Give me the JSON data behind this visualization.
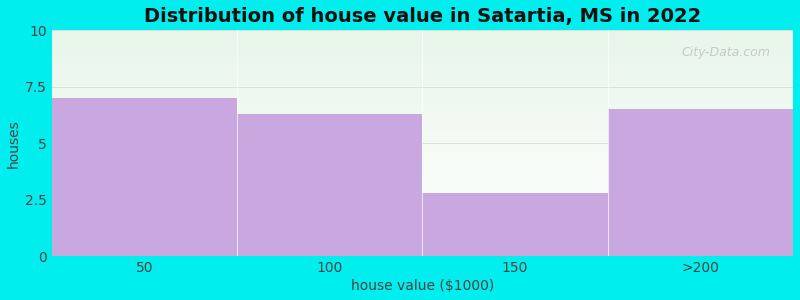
{
  "title": "Distribution of house value in Satartia, MS in 2022",
  "xlabel": "house value ($1000)",
  "ylabel": "houses",
  "categories": [
    "50",
    "100",
    "150",
    ">200"
  ],
  "values": [
    7,
    6.3,
    2.8,
    6.5
  ],
  "bar_color": "#c9a8e0",
  "bar_edge_color": "#c9a8e0",
  "background_color": "#00eeee",
  "plot_bg_color_top": "#e8f5e9",
  "plot_bg_color_bottom": "#ffffff",
  "ylim": [
    0,
    10
  ],
  "yticks": [
    0,
    2.5,
    5,
    7.5,
    10
  ],
  "title_fontsize": 14,
  "axis_label_fontsize": 10,
  "tick_fontsize": 10,
  "watermark_text": "City-Data.com"
}
